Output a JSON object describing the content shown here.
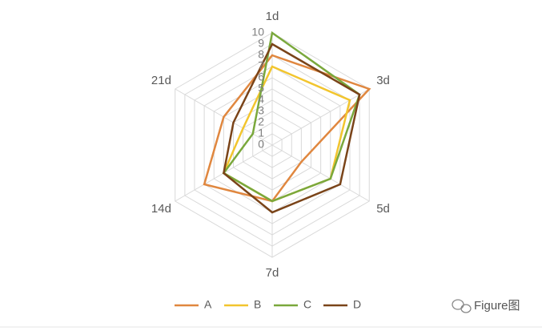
{
  "chart_data": {
    "type": "radar",
    "categories": [
      "1d",
      "3d",
      "5d",
      "7d",
      "14d",
      "21d"
    ],
    "rlim": [
      0,
      10
    ],
    "rticks": [
      0,
      1,
      2,
      3,
      4,
      5,
      6,
      7,
      8,
      9,
      10
    ],
    "grid": true,
    "legend": "bottom",
    "series": [
      {
        "name": "A",
        "color": "#e0873f",
        "values": [
          8,
          10,
          3,
          5,
          7,
          5
        ]
      },
      {
        "name": "B",
        "color": "#f2c52e",
        "values": [
          7,
          8,
          6,
          5,
          5,
          3
        ]
      },
      {
        "name": "C",
        "color": "#7aa83c",
        "values": [
          10,
          9,
          6,
          5,
          5,
          2
        ]
      },
      {
        "name": "D",
        "color": "#7a4419",
        "values": [
          9,
          9,
          7,
          6,
          5,
          4
        ]
      }
    ]
  },
  "watermark": "Figure图"
}
